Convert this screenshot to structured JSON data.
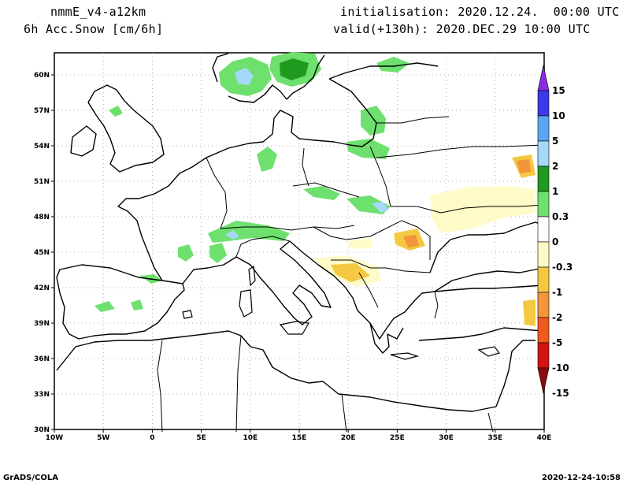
{
  "header": {
    "model": "nmmE_v4-a12km",
    "variable": "6h Acc.Snow [cm/6h]",
    "init_label": "initialisation:",
    "init_value": "2020.12.24.  00:00 UTC",
    "valid_label": "valid(+130h):",
    "valid_value": "2020.DEC.29 10:00 UTC"
  },
  "map": {
    "lat_ticks": [
      "60N",
      "57N",
      "54N",
      "51N",
      "48N",
      "45N",
      "42N",
      "39N",
      "36N",
      "33N",
      "30N"
    ],
    "lon_ticks": [
      "10W",
      "5W",
      "0",
      "5E",
      "10E",
      "15E",
      "20E",
      "25E",
      "30E",
      "35E",
      "40E"
    ],
    "grid": "dotted",
    "extent": {
      "lon": [
        -10,
        40
      ],
      "lat": [
        30,
        62
      ]
    }
  },
  "colorbar": {
    "labels": [
      "15",
      "10",
      "5",
      "2",
      "1",
      "0.3",
      "0",
      "-0.3",
      "-1",
      "-2",
      "-5",
      "-10",
      "-15"
    ],
    "colors": [
      "#8a2be2",
      "#3a3ae8",
      "#5aa6f0",
      "#a6d8f8",
      "#1f9a1f",
      "#6ee06e",
      "#ffffff",
      "#fffbc8",
      "#f5c842",
      "#f2963c",
      "#f05a1e",
      "#d21414",
      "#8c0a0a"
    ]
  },
  "footer": {
    "left": "GrADS/COLA",
    "right": "2020-12-24-10:58"
  }
}
